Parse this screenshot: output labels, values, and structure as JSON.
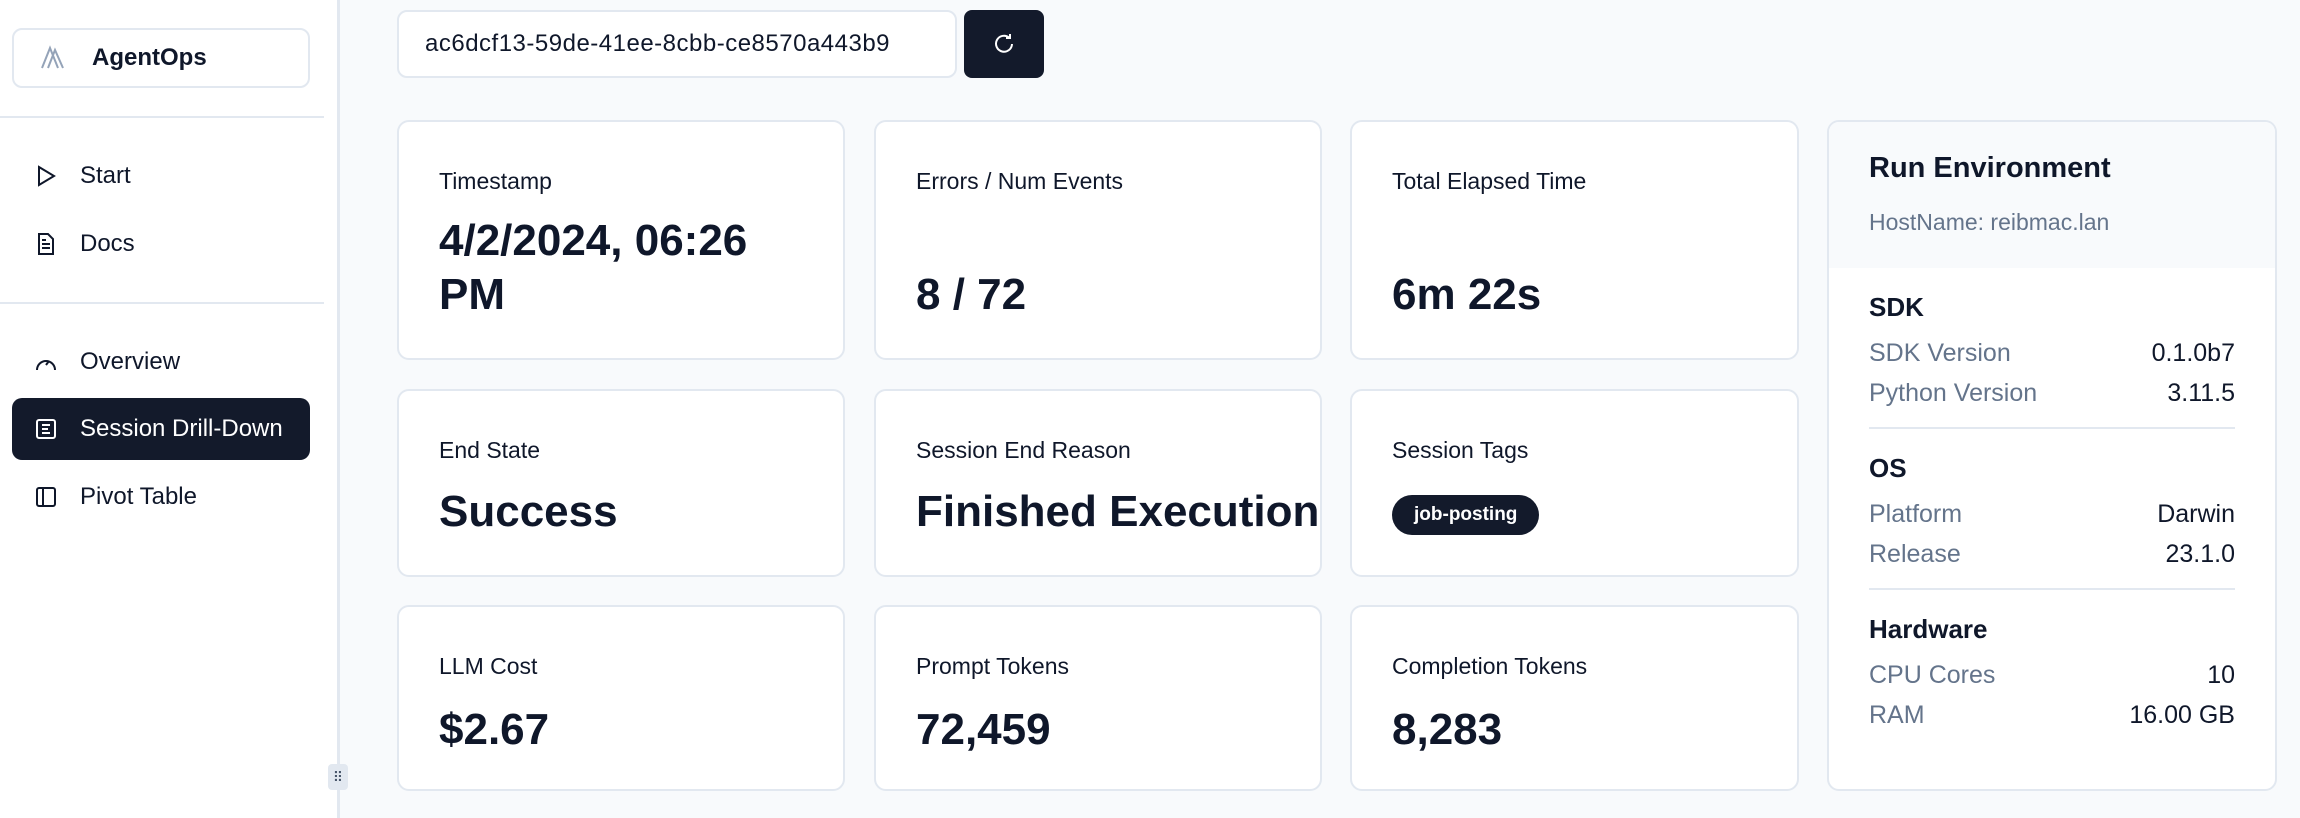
{
  "sidebar": {
    "brand": "AgentOps",
    "items": [
      {
        "label": "Start",
        "icon": "play-icon"
      },
      {
        "label": "Docs",
        "icon": "document-icon"
      },
      {
        "label": "Overview",
        "icon": "gauge-icon"
      },
      {
        "label": "Session Drill-Down",
        "icon": "list-icon",
        "active": true
      },
      {
        "label": "Pivot Table",
        "icon": "columns-icon"
      }
    ]
  },
  "session_id": "ac6dcf13-59de-41ee-8cbb-ce8570a443b9",
  "cards": {
    "timestamp": {
      "label": "Timestamp",
      "value": "4/2/2024, 06:26 PM"
    },
    "errors": {
      "label": "Errors / Num Events",
      "value": "8 / 72"
    },
    "elapsed": {
      "label": "Total Elapsed Time",
      "value": "6m 22s"
    },
    "end_state": {
      "label": "End State",
      "value": "Success"
    },
    "end_reason": {
      "label": "Session End Reason",
      "value": "Finished Execution"
    },
    "tags": {
      "label": "Session Tags",
      "values": [
        "job-posting"
      ]
    },
    "cost": {
      "label": "LLM Cost",
      "value": "$2.67"
    },
    "prompt": {
      "label": "Prompt Tokens",
      "value": "72,459"
    },
    "completion": {
      "label": "Completion Tokens",
      "value": "8,283"
    }
  },
  "environment": {
    "title": "Run Environment",
    "host": "HostName: reibmac.lan",
    "sections": [
      {
        "title": "SDK",
        "rows": [
          {
            "k": "SDK Version",
            "v": "0.1.0b7"
          },
          {
            "k": "Python Version",
            "v": "3.11.5"
          }
        ]
      },
      {
        "title": "OS",
        "rows": [
          {
            "k": "Platform",
            "v": "Darwin"
          },
          {
            "k": "Release",
            "v": "23.1.0"
          }
        ]
      },
      {
        "title": "Hardware",
        "rows": [
          {
            "k": "CPU Cores",
            "v": "10"
          },
          {
            "k": "RAM",
            "v": "16.00 GB"
          }
        ]
      }
    ]
  },
  "colors": {
    "primary": "#131a2b",
    "muted": "#64748b",
    "border": "#e2e8f0"
  }
}
